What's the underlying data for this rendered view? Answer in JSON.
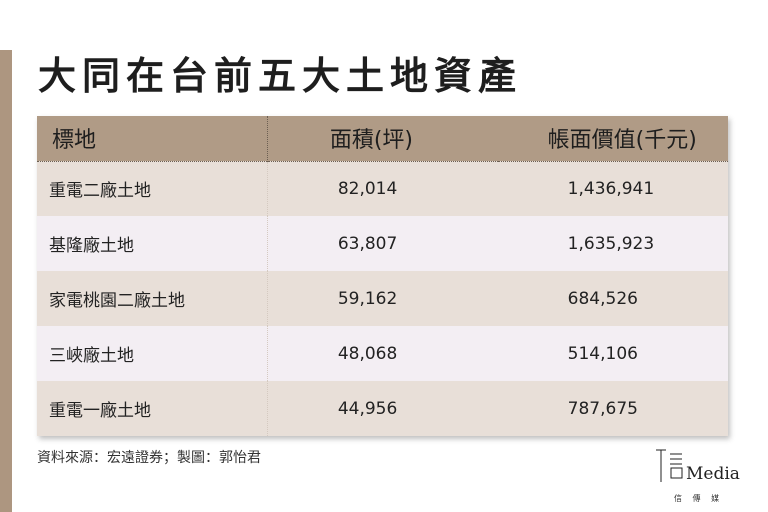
{
  "title": "大同在台前五大土地資產",
  "table": {
    "headers": [
      "標地",
      "面積(坪)",
      "帳面價值(千元)"
    ],
    "rows": [
      [
        "重電二廠土地",
        "82,014",
        "1,436,941"
      ],
      [
        "基隆廠土地",
        "63,807",
        "1,635,923"
      ],
      [
        "家電桃園二廠土地",
        "59,162",
        "684,526"
      ],
      [
        "三峽廠土地",
        "48,068",
        "514,106"
      ],
      [
        "重電一廠土地",
        "44,956",
        "787,675"
      ]
    ]
  },
  "source": "資料來源：宏遠證券；製圖：郭怡君",
  "logo": {
    "wordmark": "Media",
    "tagline": "信 傳 媒"
  },
  "colors": {
    "header_bg": "#b09b86",
    "row_odd": "#e8dfd8",
    "row_even": "#f3eef3",
    "accent": "#ad9680"
  }
}
